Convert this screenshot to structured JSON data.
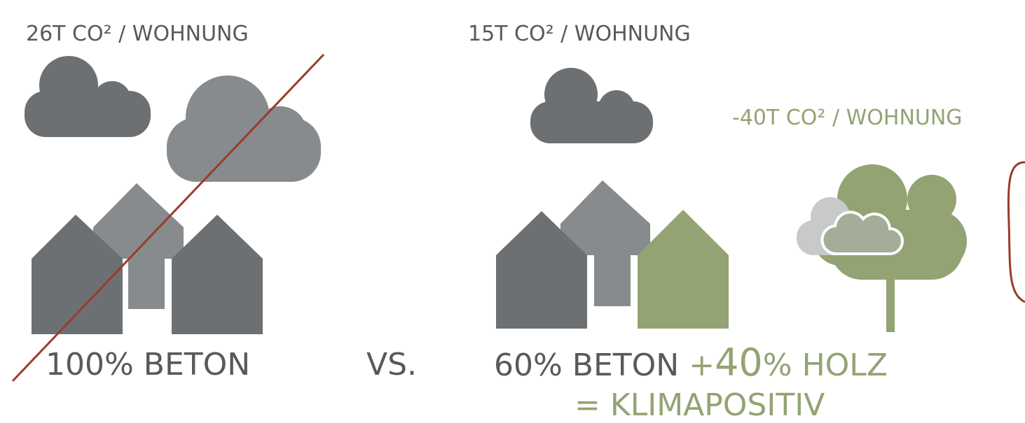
{
  "left": {
    "emission": "26T CO² / WOHNUNG",
    "label": "100% BETON"
  },
  "versus": "VS.",
  "right": {
    "emission": "15T CO² / WOHNUNG",
    "tree_emission": "-40T CO² / WOHNUNG",
    "label_concrete": "60% BETON",
    "label_plus": "+",
    "label_wood_number": "40",
    "label_wood": "% HOLZ",
    "result": "= KLIMAPOSITIV"
  }
}
